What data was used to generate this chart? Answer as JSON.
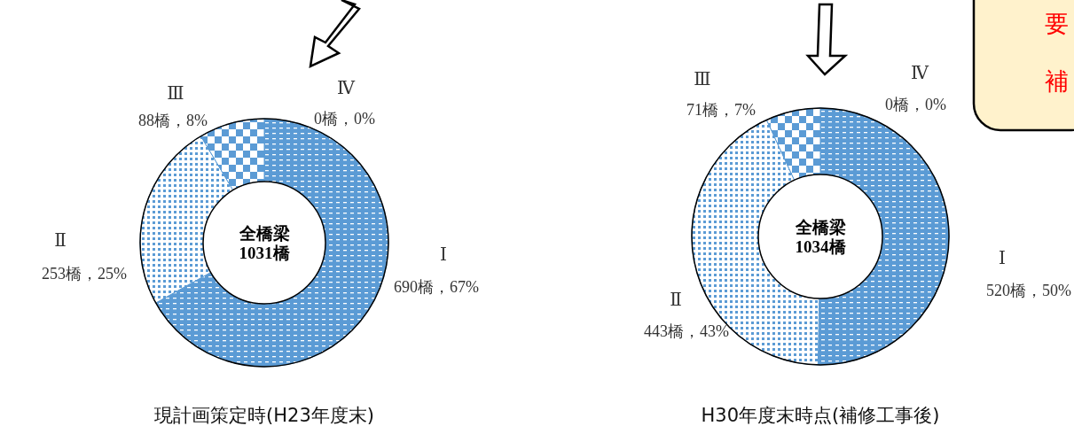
{
  "chart_data": [
    {
      "type": "donut",
      "title": "現計画策定時(H23年度末)",
      "categories": [
        "Ⅰ",
        "Ⅱ",
        "Ⅲ",
        "Ⅳ"
      ],
      "values": [
        690,
        253,
        88,
        0
      ],
      "colors": [
        "#5b9bd5",
        "#5b9bd5",
        "#5b9bd5",
        "#5b9bd5"
      ],
      "value_labels": [
        "690橋，67%",
        "253橋，25%",
        "88橋，8%",
        "0橋，0%"
      ],
      "annotations": [
        "全橋梁",
        "1031橋"
      ]
    },
    {
      "type": "donut",
      "title": "H30年度末時点(補修工事後)",
      "categories": [
        "Ⅰ",
        "Ⅱ",
        "Ⅲ",
        "Ⅳ"
      ],
      "values": [
        520,
        443,
        71,
        0
      ],
      "colors": [
        "#5b9bd5",
        "#5b9bd5",
        "#5b9bd5",
        "#5b9bd5"
      ],
      "value_labels": [
        "520橋，50%",
        "443橋，43%",
        "71橋，7%",
        "0橋，0%"
      ],
      "annotations": [
        "全橋梁",
        "1034橋",
        "要",
        "補"
      ]
    }
  ]
}
